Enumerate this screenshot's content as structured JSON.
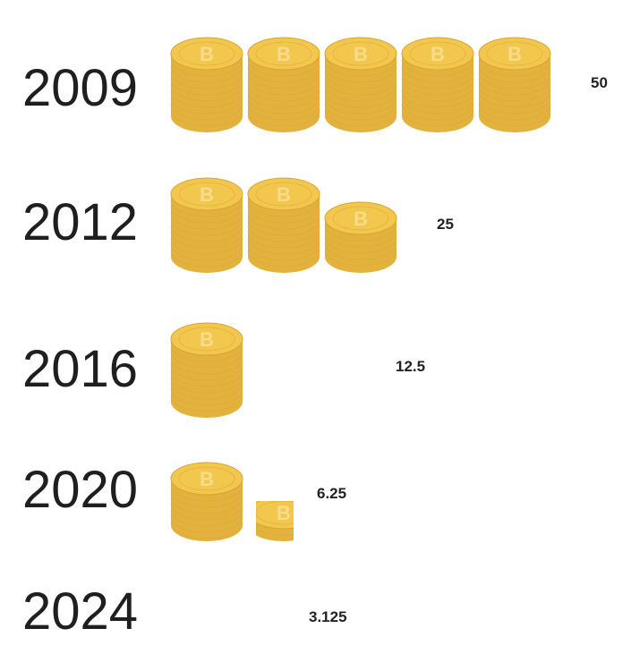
{
  "chart_data": {
    "type": "bar",
    "categories": [
      "2009",
      "2012",
      "2016",
      "2020",
      "2024"
    ],
    "values": [
      50,
      25,
      12.5,
      6.25,
      3.125
    ],
    "value_labels": [
      "50",
      "25",
      "12.5",
      "6.25",
      "3.125"
    ],
    "title": "",
    "xlabel": "",
    "ylabel": "",
    "coin_symbol": "B",
    "units_per_stack": 10,
    "colors": {
      "coin_side": "#E3B23C",
      "coin_top": "#F2C74E",
      "coin_top_edge": "#D9A42E",
      "coin_glyph": "#F8DC8A",
      "coin_lines": "#D6A032"
    }
  }
}
